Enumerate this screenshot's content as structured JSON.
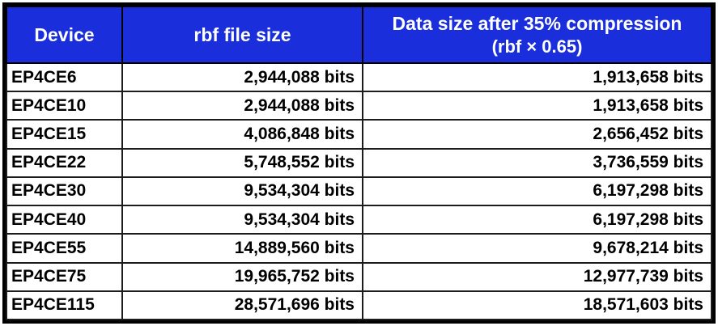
{
  "colors": {
    "header_bg": "#1a2fdb",
    "header_text": "#ffffff",
    "body_text": "#000000",
    "border": "#000000"
  },
  "table": {
    "headers": {
      "device": "Device",
      "rbf": "rbf file size",
      "compressed_line1": "Data size after 35% compression",
      "compressed_line2": "(rbf × 0.65)"
    },
    "rows": [
      {
        "device": "EP4CE6",
        "rbf": "2,944,088 bits",
        "compressed": "1,913,658 bits"
      },
      {
        "device": "EP4CE10",
        "rbf": "2,944,088 bits",
        "compressed": "1,913,658 bits"
      },
      {
        "device": "EP4CE15",
        "rbf": "4,086,848 bits",
        "compressed": "2,656,452 bits"
      },
      {
        "device": "EP4CE22",
        "rbf": "5,748,552 bits",
        "compressed": "3,736,559 bits"
      },
      {
        "device": "EP4CE30",
        "rbf": "9,534,304 bits",
        "compressed": "6,197,298 bits"
      },
      {
        "device": "EP4CE40",
        "rbf": "9,534,304 bits",
        "compressed": "6,197,298 bits"
      },
      {
        "device": "EP4CE55",
        "rbf": "14,889,560 bits",
        "compressed": "9,678,214 bits"
      },
      {
        "device": "EP4CE75",
        "rbf": "19,965,752 bits",
        "compressed": "12,977,739 bits"
      },
      {
        "device": "EP4CE115",
        "rbf": "28,571,696 bits",
        "compressed": "18,571,603 bits"
      }
    ]
  },
  "chart_data": {
    "type": "table",
    "title": "",
    "columns": [
      "Device",
      "rbf file size",
      "Data size after 35% compression (rbf × 0.65)"
    ],
    "units": "bits",
    "rows": [
      {
        "device": "EP4CE6",
        "rbf_bits": 2944088,
        "compressed_bits": 1913658
      },
      {
        "device": "EP4CE10",
        "rbf_bits": 2944088,
        "compressed_bits": 1913658
      },
      {
        "device": "EP4CE15",
        "rbf_bits": 4086848,
        "compressed_bits": 2656452
      },
      {
        "device": "EP4CE22",
        "rbf_bits": 5748552,
        "compressed_bits": 3736559
      },
      {
        "device": "EP4CE30",
        "rbf_bits": 9534304,
        "compressed_bits": 6197298
      },
      {
        "device": "EP4CE40",
        "rbf_bits": 9534304,
        "compressed_bits": 6197298
      },
      {
        "device": "EP4CE55",
        "rbf_bits": 14889560,
        "compressed_bits": 9678214
      },
      {
        "device": "EP4CE75",
        "rbf_bits": 19965752,
        "compressed_bits": 12977739
      },
      {
        "device": "EP4CE115",
        "rbf_bits": 28571696,
        "compressed_bits": 18571603
      }
    ]
  }
}
